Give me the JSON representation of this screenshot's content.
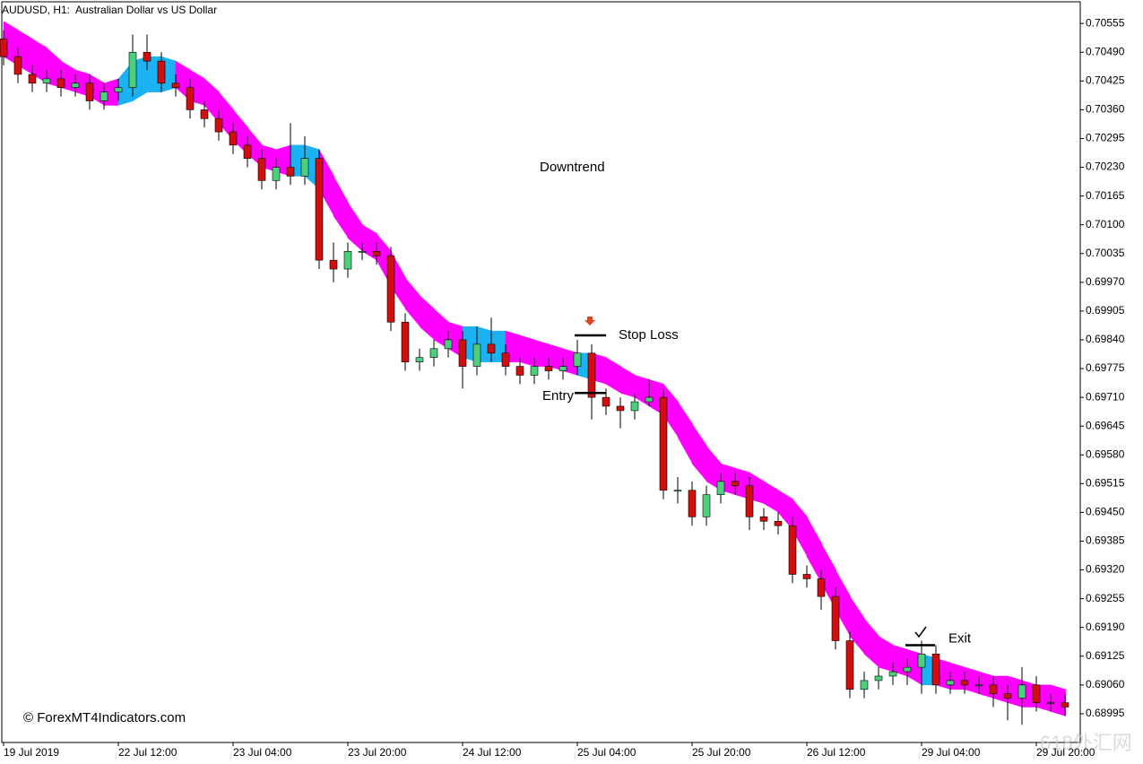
{
  "chart_data": {
    "type": "candlestick",
    "title": "AUDUSD, H1:  Australian Dollar vs US Dollar",
    "categories": [
      "19 Jul 2019",
      null,
      null,
      null,
      null,
      null,
      null,
      null,
      "22 Jul 12:00",
      null,
      null,
      null,
      null,
      null,
      null,
      null,
      "23 Jul 04:00",
      null,
      null,
      null,
      null,
      null,
      null,
      null,
      "23 Jul 20:00",
      null,
      null,
      null,
      null,
      null,
      null,
      null,
      "24 Jul 12:00",
      null,
      null,
      null,
      null,
      null,
      null,
      null,
      "25 Jul 04:00",
      null,
      null,
      null,
      null,
      null,
      null,
      null,
      "25 Jul 20:00",
      null,
      null,
      null,
      null,
      null,
      null,
      null,
      "26 Jul 12:00",
      null,
      null,
      null,
      null,
      null,
      null,
      null,
      "29 Jul 04:00",
      null,
      null,
      null,
      null,
      null,
      null,
      null,
      "29 Jul 20:00",
      null,
      null
    ],
    "open": [
      0.7052,
      0.7048,
      0.7044,
      0.7042,
      0.7043,
      0.7041,
      0.7042,
      0.7038,
      0.704,
      0.7041,
      0.7049,
      0.7047,
      0.7042,
      0.7041,
      0.7036,
      0.7034,
      0.7031,
      0.7028,
      0.7025,
      0.702,
      0.7023,
      0.7021,
      0.7025,
      0.7002,
      0.7,
      0.7004,
      0.7004,
      0.7003,
      0.6988,
      0.6979,
      0.698,
      0.6982,
      0.6984,
      0.6978,
      0.6983,
      0.6981,
      0.6978,
      0.6976,
      0.6978,
      0.6977,
      0.6978,
      0.6981,
      0.6971,
      0.6969,
      0.6968,
      0.697,
      0.6971,
      0.695,
      0.695,
      0.6944,
      0.6949,
      0.6952,
      0.6951,
      0.6944,
      0.6943,
      0.6942,
      0.6931,
      0.693,
      0.6926,
      0.6916,
      0.6905,
      0.6907,
      0.6908,
      0.6909,
      0.691,
      0.6913,
      0.6906,
      0.6907,
      0.6906,
      0.6906,
      0.6904,
      0.6903,
      0.6906,
      0.6902,
      0.6902
    ],
    "high": [
      0.7054,
      0.705,
      0.7046,
      0.7045,
      0.7045,
      0.7044,
      0.7044,
      0.7042,
      0.7043,
      0.7053,
      0.7053,
      0.7049,
      0.7044,
      0.7043,
      0.7038,
      0.7036,
      0.7033,
      0.703,
      0.7027,
      0.7025,
      0.7033,
      0.703,
      0.7027,
      0.7006,
      0.7006,
      0.7006,
      0.7006,
      0.7005,
      0.699,
      0.6982,
      0.6984,
      0.6986,
      0.6986,
      0.6987,
      0.6989,
      0.6983,
      0.698,
      0.698,
      0.698,
      0.698,
      0.6984,
      0.6983,
      0.6973,
      0.6971,
      0.6972,
      0.6975,
      0.6973,
      0.6953,
      0.6952,
      0.6951,
      0.6954,
      0.6954,
      0.6953,
      0.6946,
      0.6945,
      0.6944,
      0.6933,
      0.6932,
      0.6928,
      0.6918,
      0.6909,
      0.691,
      0.6911,
      0.6912,
      0.6916,
      0.6915,
      0.6909,
      0.6909,
      0.6908,
      0.6908,
      0.6906,
      0.691,
      0.6908,
      0.6904,
      0.6904
    ],
    "low": [
      0.7046,
      0.7042,
      0.704,
      0.704,
      0.7039,
      0.7039,
      0.7036,
      0.7036,
      0.7038,
      0.7039,
      0.7045,
      0.704,
      0.7039,
      0.7034,
      0.7032,
      0.7029,
      0.7026,
      0.7023,
      0.7018,
      0.7018,
      0.7019,
      0.7019,
      0.7,
      0.6997,
      0.6998,
      0.7002,
      0.7001,
      0.6986,
      0.6977,
      0.6977,
      0.6978,
      0.698,
      0.6973,
      0.6976,
      0.6979,
      0.6976,
      0.6974,
      0.6974,
      0.6975,
      0.6975,
      0.6976,
      0.6966,
      0.6967,
      0.6964,
      0.6966,
      0.6969,
      0.6948,
      0.6947,
      0.6942,
      0.6942,
      0.6947,
      0.6949,
      0.6941,
      0.6941,
      0.694,
      0.6929,
      0.6928,
      0.6923,
      0.6914,
      0.6903,
      0.6903,
      0.6905,
      0.6906,
      0.6906,
      0.6904,
      0.6904,
      0.6904,
      0.6904,
      0.6904,
      0.6901,
      0.6898,
      0.6897,
      0.69,
      0.69,
      0.6899
    ],
    "close": [
      0.7048,
      0.7044,
      0.7042,
      0.7043,
      0.7041,
      0.7042,
      0.7038,
      0.704,
      0.7041,
      0.7049,
      0.7047,
      0.7042,
      0.7041,
      0.7036,
      0.7034,
      0.7031,
      0.7028,
      0.7025,
      0.702,
      0.7023,
      0.7021,
      0.7025,
      0.7002,
      0.7,
      0.7004,
      0.7004,
      0.7003,
      0.6988,
      0.6979,
      0.698,
      0.6982,
      0.6984,
      0.6978,
      0.6983,
      0.6981,
      0.6978,
      0.6976,
      0.6978,
      0.6977,
      0.6978,
      0.6981,
      0.6971,
      0.6969,
      0.6968,
      0.697,
      0.6971,
      0.695,
      0.695,
      0.6944,
      0.6949,
      0.6952,
      0.6951,
      0.6944,
      0.6943,
      0.6942,
      0.6931,
      0.693,
      0.6926,
      0.6916,
      0.6905,
      0.6907,
      0.6908,
      0.6909,
      0.691,
      0.6913,
      0.6906,
      0.6907,
      0.6906,
      0.6906,
      0.6904,
      0.6903,
      0.6906,
      0.6902,
      0.6902,
      0.6901
    ],
    "up_color": "#4cd07d",
    "down_color": "#d01010",
    "band": {
      "upper": [
        0.7056,
        0.7054,
        0.7052,
        0.705,
        0.7047,
        0.7045,
        0.7044,
        0.7042,
        0.7043,
        0.7047,
        0.7048,
        0.7048,
        0.7047,
        0.7045,
        0.7043,
        0.704,
        0.7036,
        0.7032,
        0.7028,
        0.7027,
        0.7028,
        0.7028,
        0.7027,
        0.7021,
        0.7015,
        0.701,
        0.7008,
        0.7004,
        0.6998,
        0.6994,
        0.6991,
        0.6988,
        0.6987,
        0.6987,
        0.6986,
        0.6986,
        0.6985,
        0.6984,
        0.6983,
        0.6982,
        0.6981,
        0.6981,
        0.698,
        0.6978,
        0.6976,
        0.6975,
        0.6974,
        0.697,
        0.6965,
        0.696,
        0.6956,
        0.6955,
        0.6954,
        0.6952,
        0.695,
        0.6948,
        0.6944,
        0.6938,
        0.6932,
        0.6926,
        0.6921,
        0.6917,
        0.6915,
        0.6914,
        0.6913,
        0.6912,
        0.6911,
        0.691,
        0.6909,
        0.6908,
        0.6908,
        0.6907,
        0.6906,
        0.6906,
        0.6905
      ],
      "lower": [
        0.7048,
        0.7046,
        0.7044,
        0.7042,
        0.7041,
        0.704,
        0.7039,
        0.7037,
        0.7037,
        0.7038,
        0.704,
        0.704,
        0.7041,
        0.7038,
        0.7037,
        0.7033,
        0.7029,
        0.7026,
        0.7023,
        0.7022,
        0.7021,
        0.7021,
        0.7018,
        0.7012,
        0.7007,
        0.7004,
        0.7002,
        0.6996,
        0.6991,
        0.6987,
        0.6984,
        0.6982,
        0.698,
        0.6979,
        0.6979,
        0.6979,
        0.6979,
        0.6978,
        0.6978,
        0.6977,
        0.6976,
        0.6975,
        0.6974,
        0.6972,
        0.6971,
        0.6969,
        0.6967,
        0.6962,
        0.6956,
        0.6952,
        0.695,
        0.6949,
        0.6948,
        0.6947,
        0.6945,
        0.6941,
        0.6935,
        0.6929,
        0.6923,
        0.6917,
        0.6913,
        0.691,
        0.6909,
        0.6908,
        0.6906,
        0.6906,
        0.6905,
        0.6905,
        0.6904,
        0.6903,
        0.6902,
        0.6901,
        0.6901,
        0.69,
        0.6899
      ],
      "colors": [
        "#ff00ff",
        "#ff00ff",
        "#ff00ff",
        "#ff00ff",
        "#ff00ff",
        "#ff00ff",
        "#ff00ff",
        "#ff00ff",
        "#1ab2f0",
        "#1ab2f0",
        "#1ab2f0",
        "#1ab2f0",
        "#ff00ff",
        "#ff00ff",
        "#ff00ff",
        "#ff00ff",
        "#ff00ff",
        "#ff00ff",
        "#ff00ff",
        "#ff00ff",
        "#1ab2f0",
        "#1ab2f0",
        "#ff00ff",
        "#ff00ff",
        "#ff00ff",
        "#ff00ff",
        "#ff00ff",
        "#ff00ff",
        "#ff00ff",
        "#ff00ff",
        "#ff00ff",
        "#ff00ff",
        "#1ab2f0",
        "#1ab2f0",
        "#1ab2f0",
        "#ff00ff",
        "#ff00ff",
        "#ff00ff",
        "#ff00ff",
        "#ff00ff",
        "#1ab2f0",
        "#ff00ff",
        "#ff00ff",
        "#ff00ff",
        "#ff00ff",
        "#ff00ff",
        "#ff00ff",
        "#ff00ff",
        "#ff00ff",
        "#ff00ff",
        "#ff00ff",
        "#ff00ff",
        "#ff00ff",
        "#ff00ff",
        "#ff00ff",
        "#ff00ff",
        "#ff00ff",
        "#ff00ff",
        "#ff00ff",
        "#ff00ff",
        "#ff00ff",
        "#ff00ff",
        "#ff00ff",
        "#ff00ff",
        "#1ab2f0",
        "#ff00ff",
        "#ff00ff",
        "#ff00ff",
        "#ff00ff",
        "#ff00ff",
        "#ff00ff",
        "#ff00ff",
        "#ff00ff",
        "#ff00ff",
        "#ff00ff"
      ]
    },
    "levels": [
      {
        "label": "Stop Loss",
        "value": 0.6985
      },
      {
        "label": "Entry",
        "value": 0.6972
      },
      {
        "label": "Exit",
        "value": 0.6915
      }
    ],
    "annotations": [
      "Downtrend"
    ],
    "copyright": "© ForexMT4Indicators.com",
    "watermark": "618外汇网",
    "ylim": [
      0.6893,
      0.70604
    ],
    "yticks": [
      0.70555,
      {
        "value": 0.7049,
        "label": "0.70490"
      },
      0.70425,
      {
        "value": 0.7036,
        "label": "0.70360"
      },
      0.70295,
      {
        "value": 0.7023,
        "label": "0.70230"
      },
      0.70165,
      {
        "value": 0.701,
        "label": "0.70100"
      },
      0.70035,
      {
        "value": 0.6997,
        "label": "0.69970"
      },
      0.69905,
      {
        "value": 0.6984,
        "label": "0.69840"
      },
      0.69775,
      {
        "value": 0.6971,
        "label": "0.69710"
      },
      0.69645,
      {
        "value": 0.6958,
        "label": "0.69580"
      },
      0.69515,
      {
        "value": 0.6945,
        "label": "0.69450"
      },
      0.69385,
      {
        "value": 0.6932,
        "label": "0.69320"
      },
      0.69255,
      {
        "value": 0.6919,
        "label": "0.69190"
      },
      0.69125,
      {
        "value": 0.6906,
        "label": "0.69060"
      },
      0.68995
    ],
    "grid": false
  }
}
